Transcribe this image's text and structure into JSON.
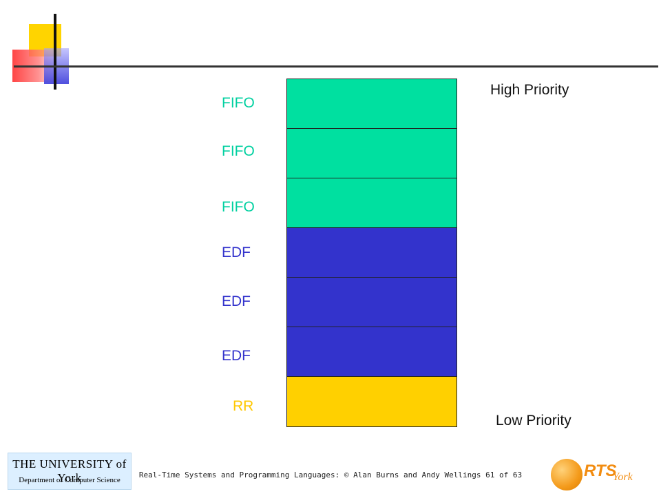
{
  "header": {
    "high_priority": "High Priority",
    "low_priority": "Low Priority"
  },
  "levels": [
    {
      "label": "FIFO",
      "color": "#00e0a0"
    },
    {
      "label": "FIFO",
      "color": "#00e0a0"
    },
    {
      "label": "FIFO",
      "color": "#00e0a0"
    },
    {
      "label": "EDF",
      "color": "#3333cc"
    },
    {
      "label": "EDF",
      "color": "#3333cc"
    },
    {
      "label": "EDF",
      "color": "#3333cc"
    },
    {
      "label": "RR",
      "color": "#ffd000"
    }
  ],
  "colors": {
    "fifo_text": "#00d0a0",
    "edf_text": "#3333cc",
    "rr_text": "#ffc800"
  },
  "footer": {
    "text": "Real-Time Systems and Programming Languages: © Alan Burns and Andy Wellings 61 of 63",
    "university_line1": "THE UNIVERSITY of York",
    "university_line2": "Department of Computer Science",
    "rts_text": "RTS",
    "rts_york": "York"
  }
}
